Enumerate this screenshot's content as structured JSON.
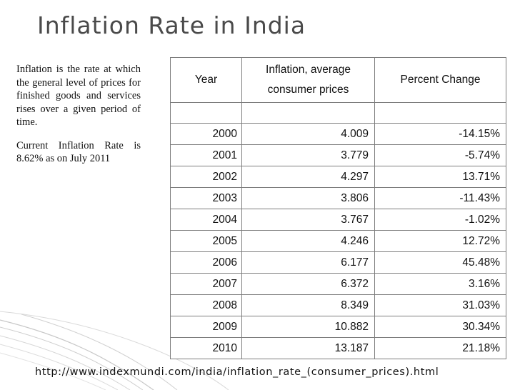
{
  "slide": {
    "title": "Inflation Rate in India",
    "description": "Inflation is the rate at which the general level of prices for finished goods and services rises over a given period of time.",
    "current_rate": "Current Inflation Rate is 8.62% as on July 2011",
    "source_url": "http://www.indexmundi.com/india/inflation_rate_(consumer_prices).html"
  },
  "table": {
    "headers": {
      "year": "Year",
      "inflation_line1": "Inflation, average",
      "inflation_line2": "consumer prices",
      "percent_change": "Percent Change"
    },
    "rows": [
      {
        "year": "2000",
        "inflation": "4.009",
        "change": "-14.15%"
      },
      {
        "year": "2001",
        "inflation": "3.779",
        "change": "-5.74%"
      },
      {
        "year": "2002",
        "inflation": "4.297",
        "change": "13.71%"
      },
      {
        "year": "2003",
        "inflation": "3.806",
        "change": "-11.43%"
      },
      {
        "year": "2004",
        "inflation": "3.767",
        "change": "-1.02%"
      },
      {
        "year": "2005",
        "inflation": "4.246",
        "change": "12.72%"
      },
      {
        "year": "2006",
        "inflation": "6.177",
        "change": "45.48%"
      },
      {
        "year": "2007",
        "inflation": "6.372",
        "change": "3.16%"
      },
      {
        "year": "2008",
        "inflation": "8.349",
        "change": "31.03%"
      },
      {
        "year": "2009",
        "inflation": "10.882",
        "change": "30.34%"
      },
      {
        "year": "2010",
        "inflation": "13.187",
        "change": "21.18%"
      }
    ]
  },
  "colors": {
    "title": "#4a4a4a",
    "border": "#7d7d7d",
    "decoration": "#c8c8c8"
  }
}
